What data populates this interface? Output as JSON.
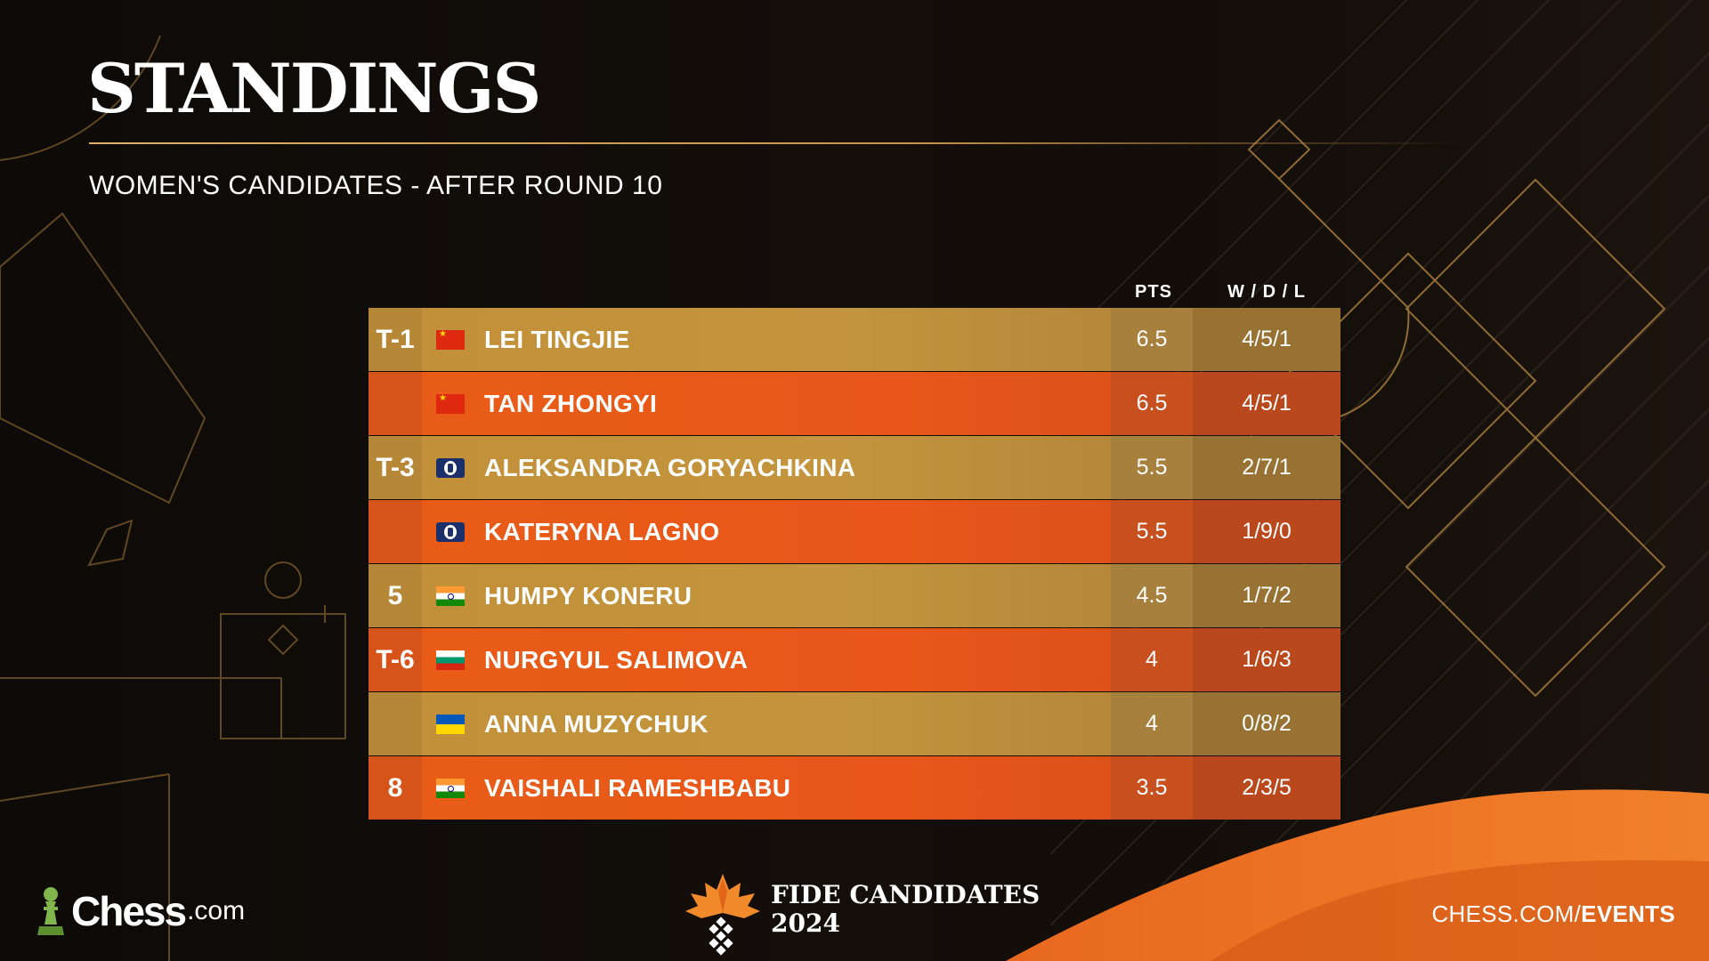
{
  "header": {
    "title": "STANDINGS",
    "subtitle": "WOMEN'S CANDIDATES - AFTER ROUND 10"
  },
  "table": {
    "columns": {
      "pts": "PTS",
      "wdl": "W / D / L"
    },
    "rows": [
      {
        "rank": "T-1",
        "flag": "china-flag-icon",
        "name": "LEI TINGJIE",
        "pts": "6.5",
        "wdl": "4/5/1"
      },
      {
        "rank": "",
        "flag": "china-flag-icon",
        "name": "TAN ZHONGYI",
        "pts": "6.5",
        "wdl": "4/5/1"
      },
      {
        "rank": "T-3",
        "flag": "fide-flag-icon",
        "name": "ALEKSANDRA GORYACHKINA",
        "pts": "5.5",
        "wdl": "2/7/1"
      },
      {
        "rank": "",
        "flag": "fide-flag-icon",
        "name": "KATERYNA LAGNO",
        "pts": "5.5",
        "wdl": "1/9/0"
      },
      {
        "rank": "5",
        "flag": "india-flag-icon",
        "name": "HUMPY KONERU",
        "pts": "4.5",
        "wdl": "1/7/2"
      },
      {
        "rank": "T-6",
        "flag": "bulgaria-flag-icon",
        "name": "NURGYUL SALIMOVA",
        "pts": "4",
        "wdl": "1/6/3"
      },
      {
        "rank": "",
        "flag": "ukraine-flag-icon",
        "name": "ANNA MUZYCHUK",
        "pts": "4",
        "wdl": "0/8/2"
      },
      {
        "rank": "8",
        "flag": "india-flag-icon",
        "name": "VAISHALI RAMESHBABU",
        "pts": "3.5",
        "wdl": "2/3/5"
      }
    ]
  },
  "footer": {
    "chess_logo_word": "Chess",
    "chess_logo_suffix": ".com",
    "event_line1": "FIDE CANDIDATES",
    "event_line2": "2024",
    "url_prefix": "CHESS.COM/",
    "url_bold": "EVENTS"
  },
  "colors": {
    "background": "#140f0b",
    "gold_row": "#c19038",
    "orange_row": "#e85c17",
    "accent_line": "#c8964a"
  }
}
